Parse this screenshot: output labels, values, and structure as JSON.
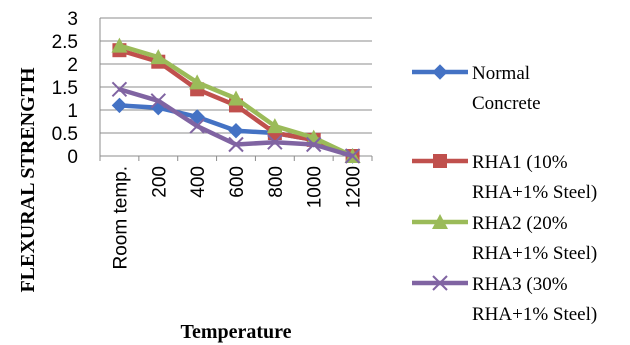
{
  "chart_data": {
    "type": "line",
    "title": "",
    "xlabel": "Temperature",
    "ylabel": "FLEXURAL   STRENGTH",
    "categories": [
      "Room temp.",
      "200",
      "400",
      "600",
      "800",
      "1000",
      "1200"
    ],
    "ylim": [
      0,
      3
    ],
    "yticks": [
      "0",
      "0.5",
      "1",
      "1.5",
      "2",
      "2.5",
      "3"
    ],
    "grid": "horizontal",
    "legend_position": "right",
    "series": [
      {
        "name": "Normal Concrete",
        "legend_lines": [
          "Normal",
          "Concrete"
        ],
        "color": "#4472C4",
        "marker": "diamond",
        "values": [
          1.1,
          1.05,
          0.85,
          0.55,
          0.5,
          0.35,
          0.0
        ]
      },
      {
        "name": "RHA1 (10% RHA+1% Steel)",
        "legend_lines": [
          "RHA1 (10%",
          "RHA+1% Steel)"
        ],
        "color": "#C0504D",
        "marker": "square",
        "values": [
          2.3,
          2.05,
          1.45,
          1.1,
          0.5,
          0.35,
          0.0
        ]
      },
      {
        "name": "RHA2 (20% RHA+1% Steel)",
        "legend_lines": [
          "RHA2 (20%",
          "RHA+1% Steel)"
        ],
        "color": "#9BBB59",
        "marker": "triangle",
        "values": [
          2.4,
          2.15,
          1.6,
          1.25,
          0.65,
          0.4,
          0.0
        ]
      },
      {
        "name": "RHA3 (30% RHA+1% Steel)",
        "legend_lines": [
          "RHA3 (30%",
          "RHA+1% Steel)"
        ],
        "color": "#8064A2",
        "marker": "x",
        "values": [
          1.45,
          1.2,
          0.65,
          0.25,
          0.3,
          0.25,
          0.0
        ]
      }
    ]
  }
}
